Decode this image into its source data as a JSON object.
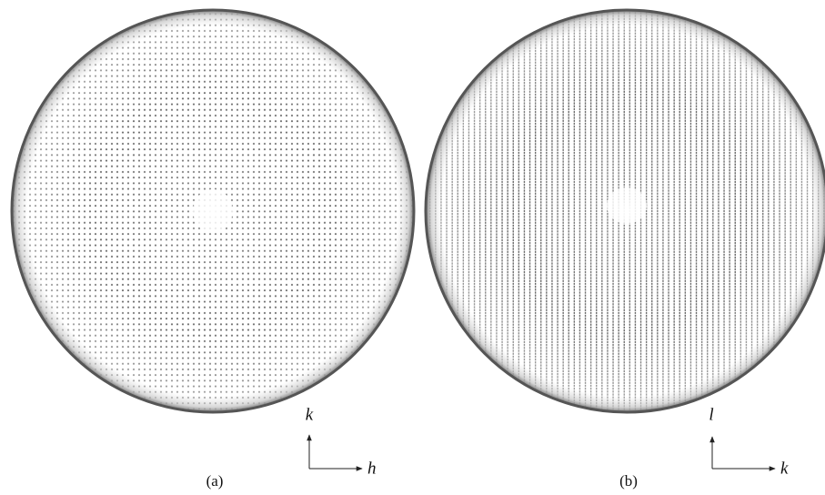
{
  "panels": [
    {
      "label": "(a)",
      "axes": {
        "vertical": "k",
        "horizontal": "h"
      }
    },
    {
      "label": "(b)",
      "axes": {
        "vertical": "l",
        "horizontal": "k"
      }
    }
  ]
}
